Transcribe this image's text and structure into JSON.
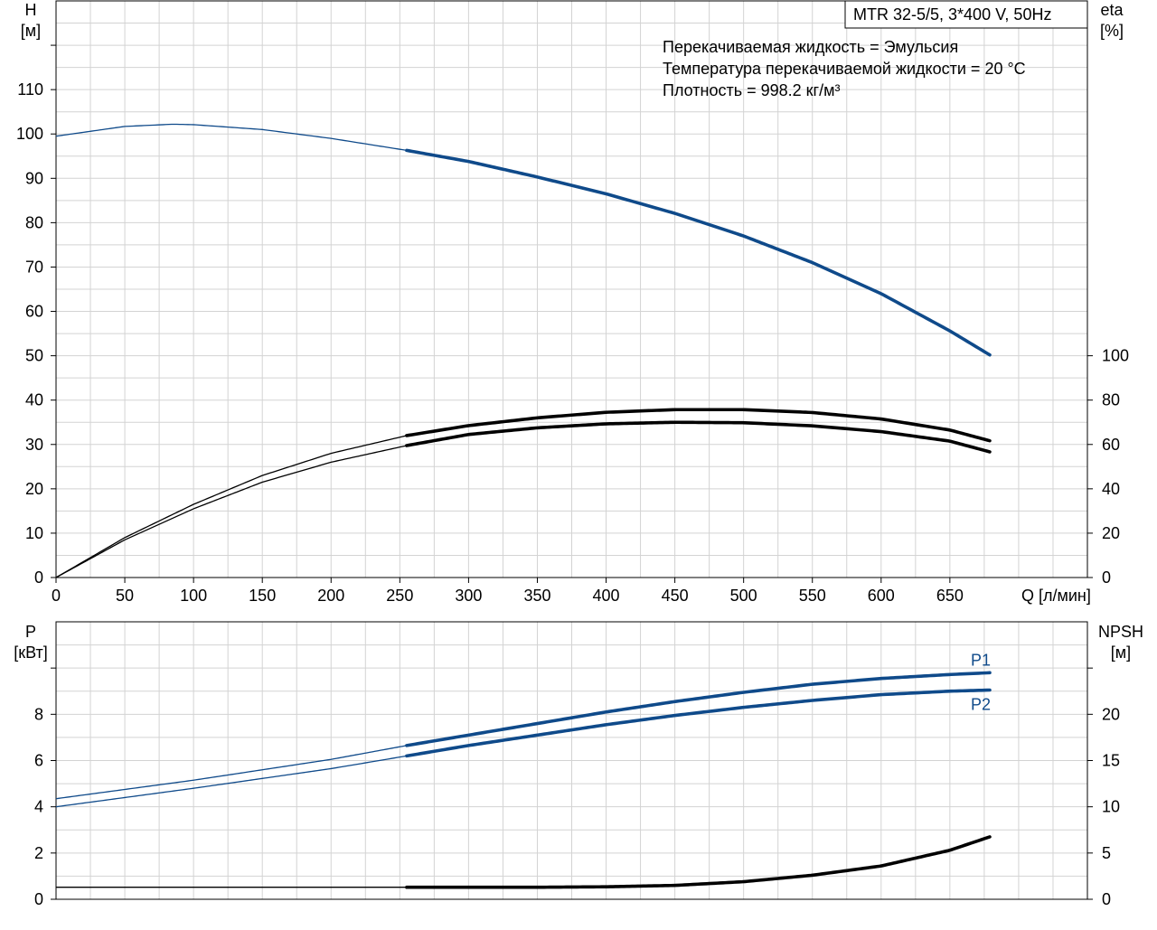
{
  "title": "MTR 32-5/5, 3*400 V, 50Hz",
  "info_lines": [
    "Перекачиваемая жидкость = Эмульсия",
    "Температура перекачиваемой жидкости = 20 °C",
    "Плотность = 998.2 кг/м³"
  ],
  "colors": {
    "blue": "#0f4a8a",
    "black": "#000000",
    "grid": "#d3d3d3"
  },
  "chart_data": [
    {
      "type": "line",
      "name": "top",
      "xlabel": "Q [л/мин]",
      "ylabel_left": [
        "H",
        "[м]"
      ],
      "ylabel_right": [
        "eta",
        "[%]"
      ],
      "xlim": [
        0,
        750
      ],
      "ylim_left": [
        0,
        130
      ],
      "ylim_right": [
        0,
        260
      ],
      "x_ticks": [
        0,
        50,
        100,
        150,
        200,
        250,
        300,
        350,
        400,
        450,
        500,
        550,
        600,
        650
      ],
      "y_ticks_left": [
        0,
        10,
        20,
        30,
        40,
        50,
        60,
        70,
        80,
        90,
        100,
        110
      ],
      "y_ticks_right": [
        0,
        20,
        40,
        60,
        80,
        100
      ],
      "grid": true,
      "operating_range_start": 255,
      "series": [
        {
          "key": "H",
          "axis": "left",
          "color": "blue",
          "x": [
            0,
            50,
            85,
            100,
            150,
            200,
            255,
            300,
            350,
            400,
            450,
            500,
            550,
            600,
            650,
            680
          ],
          "y": [
            99.5,
            101.7,
            102.2,
            102.1,
            101.0,
            99.0,
            96.3,
            93.8,
            90.3,
            86.5,
            82.1,
            77.0,
            71.0,
            64.0,
            55.6,
            50.0
          ]
        },
        {
          "key": "eta_upper",
          "axis": "right",
          "color": "black",
          "x": [
            0,
            50,
            100,
            150,
            200,
            255,
            300,
            350,
            400,
            450,
            500,
            550,
            600,
            650,
            680
          ],
          "y": [
            0,
            18,
            33,
            46,
            56,
            64,
            68.5,
            72,
            74.5,
            75.7,
            75.7,
            74.4,
            71.5,
            66.5,
            61.5
          ]
        },
        {
          "key": "eta_lower",
          "axis": "right",
          "color": "black",
          "x": [
            0,
            50,
            100,
            150,
            200,
            255,
            300,
            350,
            400,
            450,
            500,
            550,
            600,
            650,
            680
          ],
          "y": [
            0,
            17,
            31,
            43,
            52,
            59.5,
            64.5,
            67.5,
            69.3,
            70.0,
            69.8,
            68.4,
            65.8,
            61.5,
            56.5
          ]
        }
      ]
    },
    {
      "type": "line",
      "name": "bottom",
      "xlim": [
        0,
        750
      ],
      "ylabel_left": [
        "P",
        "[кВт]"
      ],
      "ylabel_right": [
        "NPSH",
        "[м]"
      ],
      "ylim_left": [
        0,
        12
      ],
      "ylim_right": [
        0,
        30
      ],
      "y_ticks_left": [
        0,
        2,
        4,
        6,
        8
      ],
      "y_ticks_right": [
        0,
        5,
        10,
        15,
        20
      ],
      "grid": true,
      "operating_range_start": 255,
      "series": [
        {
          "key": "P1",
          "name": "P1",
          "axis": "left",
          "color": "blue",
          "x": [
            0,
            100,
            200,
            255,
            300,
            350,
            400,
            450,
            500,
            550,
            600,
            650,
            680
          ],
          "y": [
            4.35,
            5.15,
            6.05,
            6.65,
            7.1,
            7.6,
            8.1,
            8.55,
            8.95,
            9.3,
            9.55,
            9.72,
            9.8
          ]
        },
        {
          "key": "P2",
          "name": "P2",
          "axis": "left",
          "color": "blue",
          "x": [
            0,
            100,
            200,
            255,
            300,
            350,
            400,
            450,
            500,
            550,
            600,
            650,
            680
          ],
          "y": [
            4.0,
            4.8,
            5.65,
            6.2,
            6.65,
            7.1,
            7.55,
            7.95,
            8.3,
            8.6,
            8.85,
            9.0,
            9.05
          ]
        },
        {
          "key": "NPSH",
          "axis": "right",
          "color": "black",
          "x": [
            0,
            255,
            300,
            350,
            400,
            450,
            500,
            550,
            600,
            650,
            680
          ],
          "y": [
            1.3,
            1.3,
            1.3,
            1.3,
            1.35,
            1.5,
            1.9,
            2.6,
            3.6,
            5.3,
            6.8
          ]
        }
      ]
    }
  ]
}
